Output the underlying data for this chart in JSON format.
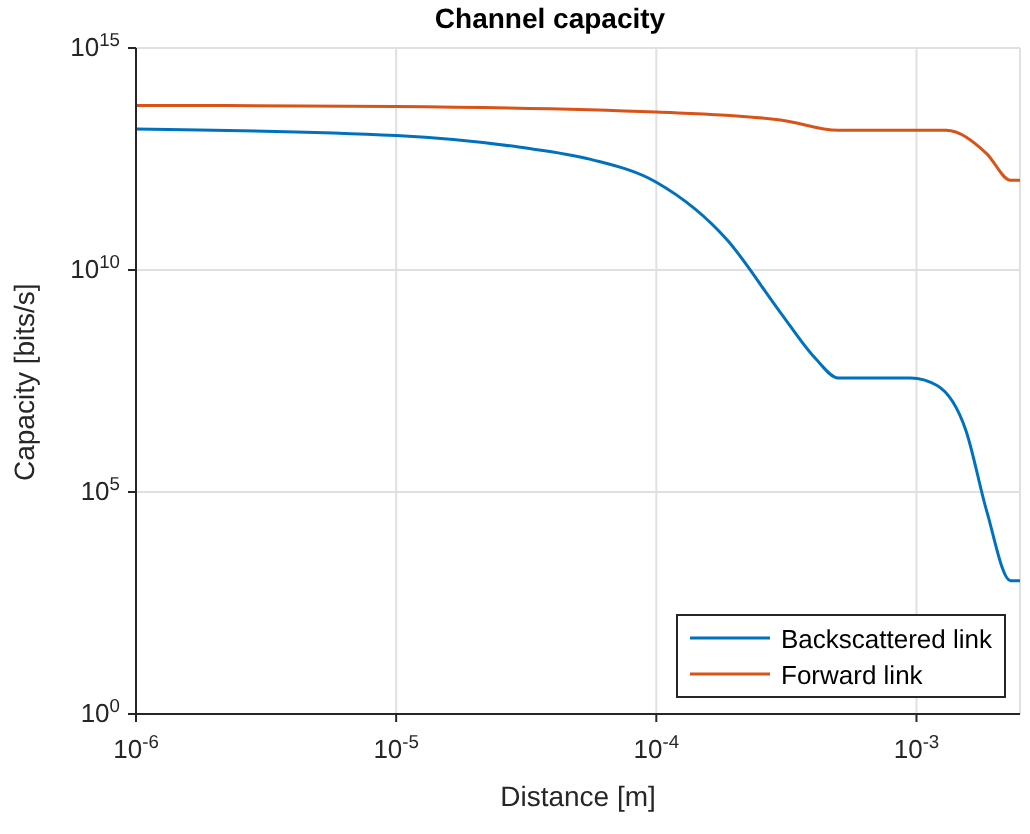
{
  "chart_data": {
    "type": "line",
    "title": "Channel capacity",
    "xlabel": "Distance [m]",
    "ylabel": "Capacity [bits/s]",
    "log": "xy",
    "xlim": [
      1e-06,
      0.0025
    ],
    "ylim": [
      1,
      1000000000000000.0
    ],
    "xticks": [
      {
        "value": 1e-06,
        "label": "10$^{-6}$"
      },
      {
        "value": 1e-05,
        "label": "10$^{-5}$"
      },
      {
        "value": 0.0001,
        "label": "10$^{-4}$"
      },
      {
        "value": 0.001,
        "label": "10$^{-3}$"
      }
    ],
    "yticks": [
      {
        "value": 1,
        "label": "10$^{0}$"
      },
      {
        "value": 100000.0,
        "label": "10$^{5}$"
      },
      {
        "value": 10000000000.0,
        "label": "10$^{10}$"
      },
      {
        "value": 1000000000000000.0,
        "label": "10$^{15}$"
      }
    ],
    "grid": true,
    "legend": "bottom right",
    "marker": "none",
    "line_style": "solid",
    "series": [
      {
        "name": "Backscattered link",
        "color": "#0072bd",
        "x": [
          1e-06,
          1e-05,
          3e-05,
          5.6e-05,
          0.0001,
          0.000187,
          0.0003,
          0.00041,
          0.0005,
          0.00095,
          0.0012,
          0.00155,
          0.00186,
          0.0023,
          0.0025
        ],
        "values": [
          15000000000000.0,
          10700000000000.0,
          5800000000000.0,
          3100000000000.0,
          950000000000.0,
          48000000000.0,
          1100000000.0,
          100000000.0,
          37000000.0,
          37000000.0,
          25000000.0,
          2400000.0,
          38000.0,
          1000.0,
          1000.0
        ]
      },
      {
        "name": "Forward link",
        "color": "#d95319",
        "x": [
          1e-06,
          1e-05,
          0.0001,
          0.0003,
          0.0005,
          0.0013,
          0.00186,
          0.0023,
          0.0025
        ],
        "values": [
          51000000000000.0,
          48000000000000.0,
          36000000000000.0,
          24000000000000.0,
          14000000000000.0,
          14000000000000.0,
          4200000000000.0,
          1050000000000.0,
          1050000000000.0
        ]
      }
    ]
  }
}
